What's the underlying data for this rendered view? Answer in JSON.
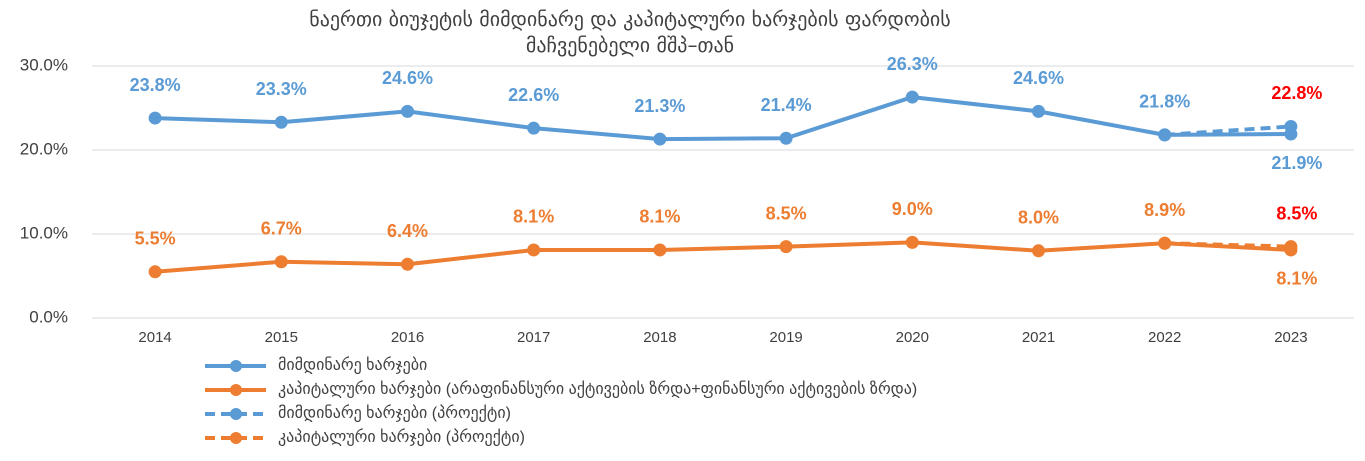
{
  "chart_data": {
    "type": "line",
    "title": "ნაერთი ბიუჯეტის მიმდინარე და კაპიტალური ხარჯების ფარდობის მაჩვენებელი მშპ–თან",
    "categories": [
      "2014",
      "2015",
      "2016",
      "2017",
      "2018",
      "2019",
      "2020",
      "2021",
      "2022",
      "2023"
    ],
    "ylim": [
      0,
      30
    ],
    "yticks": [
      {
        "value": 0,
        "label": "0.0%"
      },
      {
        "value": 10,
        "label": "10.0%"
      },
      {
        "value": 20,
        "label": "20.0%"
      },
      {
        "value": 30,
        "label": "30.0%"
      }
    ],
    "grid": true,
    "series": [
      {
        "name": "მიმდინარე ხარჯები",
        "color": "#5b9bd5",
        "dashed": false,
        "label_color": "#5b9bd5",
        "values": [
          23.8,
          23.3,
          24.6,
          22.6,
          21.3,
          21.4,
          26.3,
          24.6,
          21.8,
          21.9
        ],
        "value_labels": [
          "23.8%",
          "23.3%",
          "24.6%",
          "22.6%",
          "21.3%",
          "21.4%",
          "26.3%",
          "24.6%",
          "21.8%",
          "21.9%"
        ]
      },
      {
        "name": "კაპიტალური ხარჯები (არაფინანსური აქტივების ზრდა+ფინანსური აქტივების ზრდა)",
        "color": "#ed7d31",
        "dashed": false,
        "label_color": "#ed7d31",
        "values": [
          5.5,
          6.7,
          6.4,
          8.1,
          8.1,
          8.5,
          9.0,
          8.0,
          8.9,
          8.1
        ],
        "value_labels": [
          "5.5%",
          "6.7%",
          "6.4%",
          "8.1%",
          "8.1%",
          "8.5%",
          "9.0%",
          "8.0%",
          "8.9%",
          "8.1%"
        ]
      },
      {
        "name": "მიმდინარე ხარჯები (პროექტი)",
        "color": "#5b9bd5",
        "dashed": true,
        "label_color": "#ff0000",
        "values": [
          null,
          null,
          null,
          null,
          null,
          null,
          null,
          null,
          21.8,
          22.8
        ],
        "value_labels": [
          null,
          null,
          null,
          null,
          null,
          null,
          null,
          null,
          null,
          "22.8%"
        ]
      },
      {
        "name": "კაპიტალური ხარჯები (პროექტი)",
        "color": "#ed7d31",
        "dashed": true,
        "label_color": "#ff0000",
        "values": [
          null,
          null,
          null,
          null,
          null,
          null,
          null,
          null,
          8.9,
          8.5
        ],
        "value_labels": [
          null,
          null,
          null,
          null,
          null,
          null,
          null,
          null,
          null,
          "8.5%"
        ]
      }
    ]
  }
}
